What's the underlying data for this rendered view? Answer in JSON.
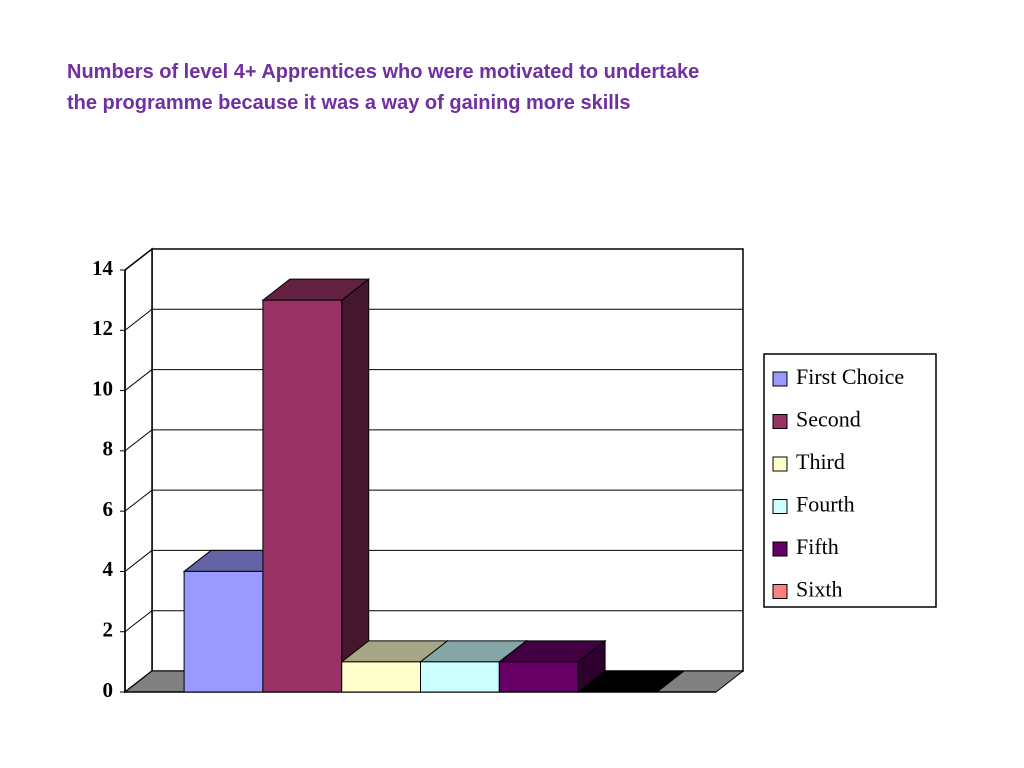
{
  "chart_data": {
    "type": "bar3d",
    "title": [
      "Numbers of level 4+ Apprentices who were motivated to undertake",
      "the programme because it was a way of gaining more skills"
    ],
    "categories": [
      null
    ],
    "series": [
      {
        "name": "First Choice",
        "color": "#9999ff",
        "values": [
          4
        ]
      },
      {
        "name": "Second",
        "color": "#993366",
        "values": [
          13
        ]
      },
      {
        "name": "Third",
        "color": "#ffffcc",
        "values": [
          1
        ]
      },
      {
        "name": "Fourth",
        "color": "#ccffff",
        "values": [
          1
        ]
      },
      {
        "name": "Fifth",
        "color": "#660066",
        "values": [
          1
        ]
      },
      {
        "name": "Sixth",
        "color": "#ff8080",
        "values": [
          0
        ]
      }
    ],
    "ylim": [
      0,
      14
    ],
    "yticks": [
      0,
      2,
      4,
      6,
      8,
      10,
      12,
      14
    ],
    "grid": true,
    "legend": "right"
  }
}
